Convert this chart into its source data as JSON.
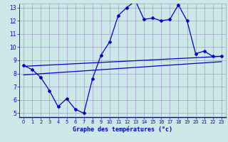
{
  "title": "Graphe des températures (°c)",
  "bg_color": "#cce8e8",
  "grid_color": "#aaaacc",
  "line_color": "#0000cc",
  "xlim": [
    -0.5,
    23.5
  ],
  "ylim": [
    4.7,
    13.3
  ],
  "xticks": [
    0,
    1,
    2,
    3,
    4,
    5,
    6,
    7,
    8,
    9,
    10,
    11,
    12,
    13,
    14,
    15,
    16,
    17,
    18,
    19,
    20,
    21,
    22,
    23
  ],
  "yticks": [
    5,
    6,
    7,
    8,
    9,
    10,
    11,
    12,
    13
  ],
  "curve1_x": [
    0,
    1,
    2,
    3,
    4,
    5,
    6,
    7,
    8,
    9,
    10,
    11,
    12,
    13,
    14,
    15,
    16,
    17,
    18,
    19,
    20,
    21,
    22,
    23
  ],
  "curve1_y": [
    8.6,
    8.3,
    7.7,
    6.7,
    5.5,
    6.1,
    5.3,
    5.0,
    7.6,
    9.4,
    10.4,
    12.4,
    13.0,
    13.5,
    12.1,
    12.2,
    12.0,
    12.1,
    13.2,
    12.0,
    9.5,
    9.7,
    9.3,
    9.3
  ],
  "curve2_x": [
    0,
    23
  ],
  "curve2_y": [
    8.55,
    9.3
  ],
  "curve3_x": [
    0,
    23
  ],
  "curve3_y": [
    7.9,
    8.9
  ]
}
